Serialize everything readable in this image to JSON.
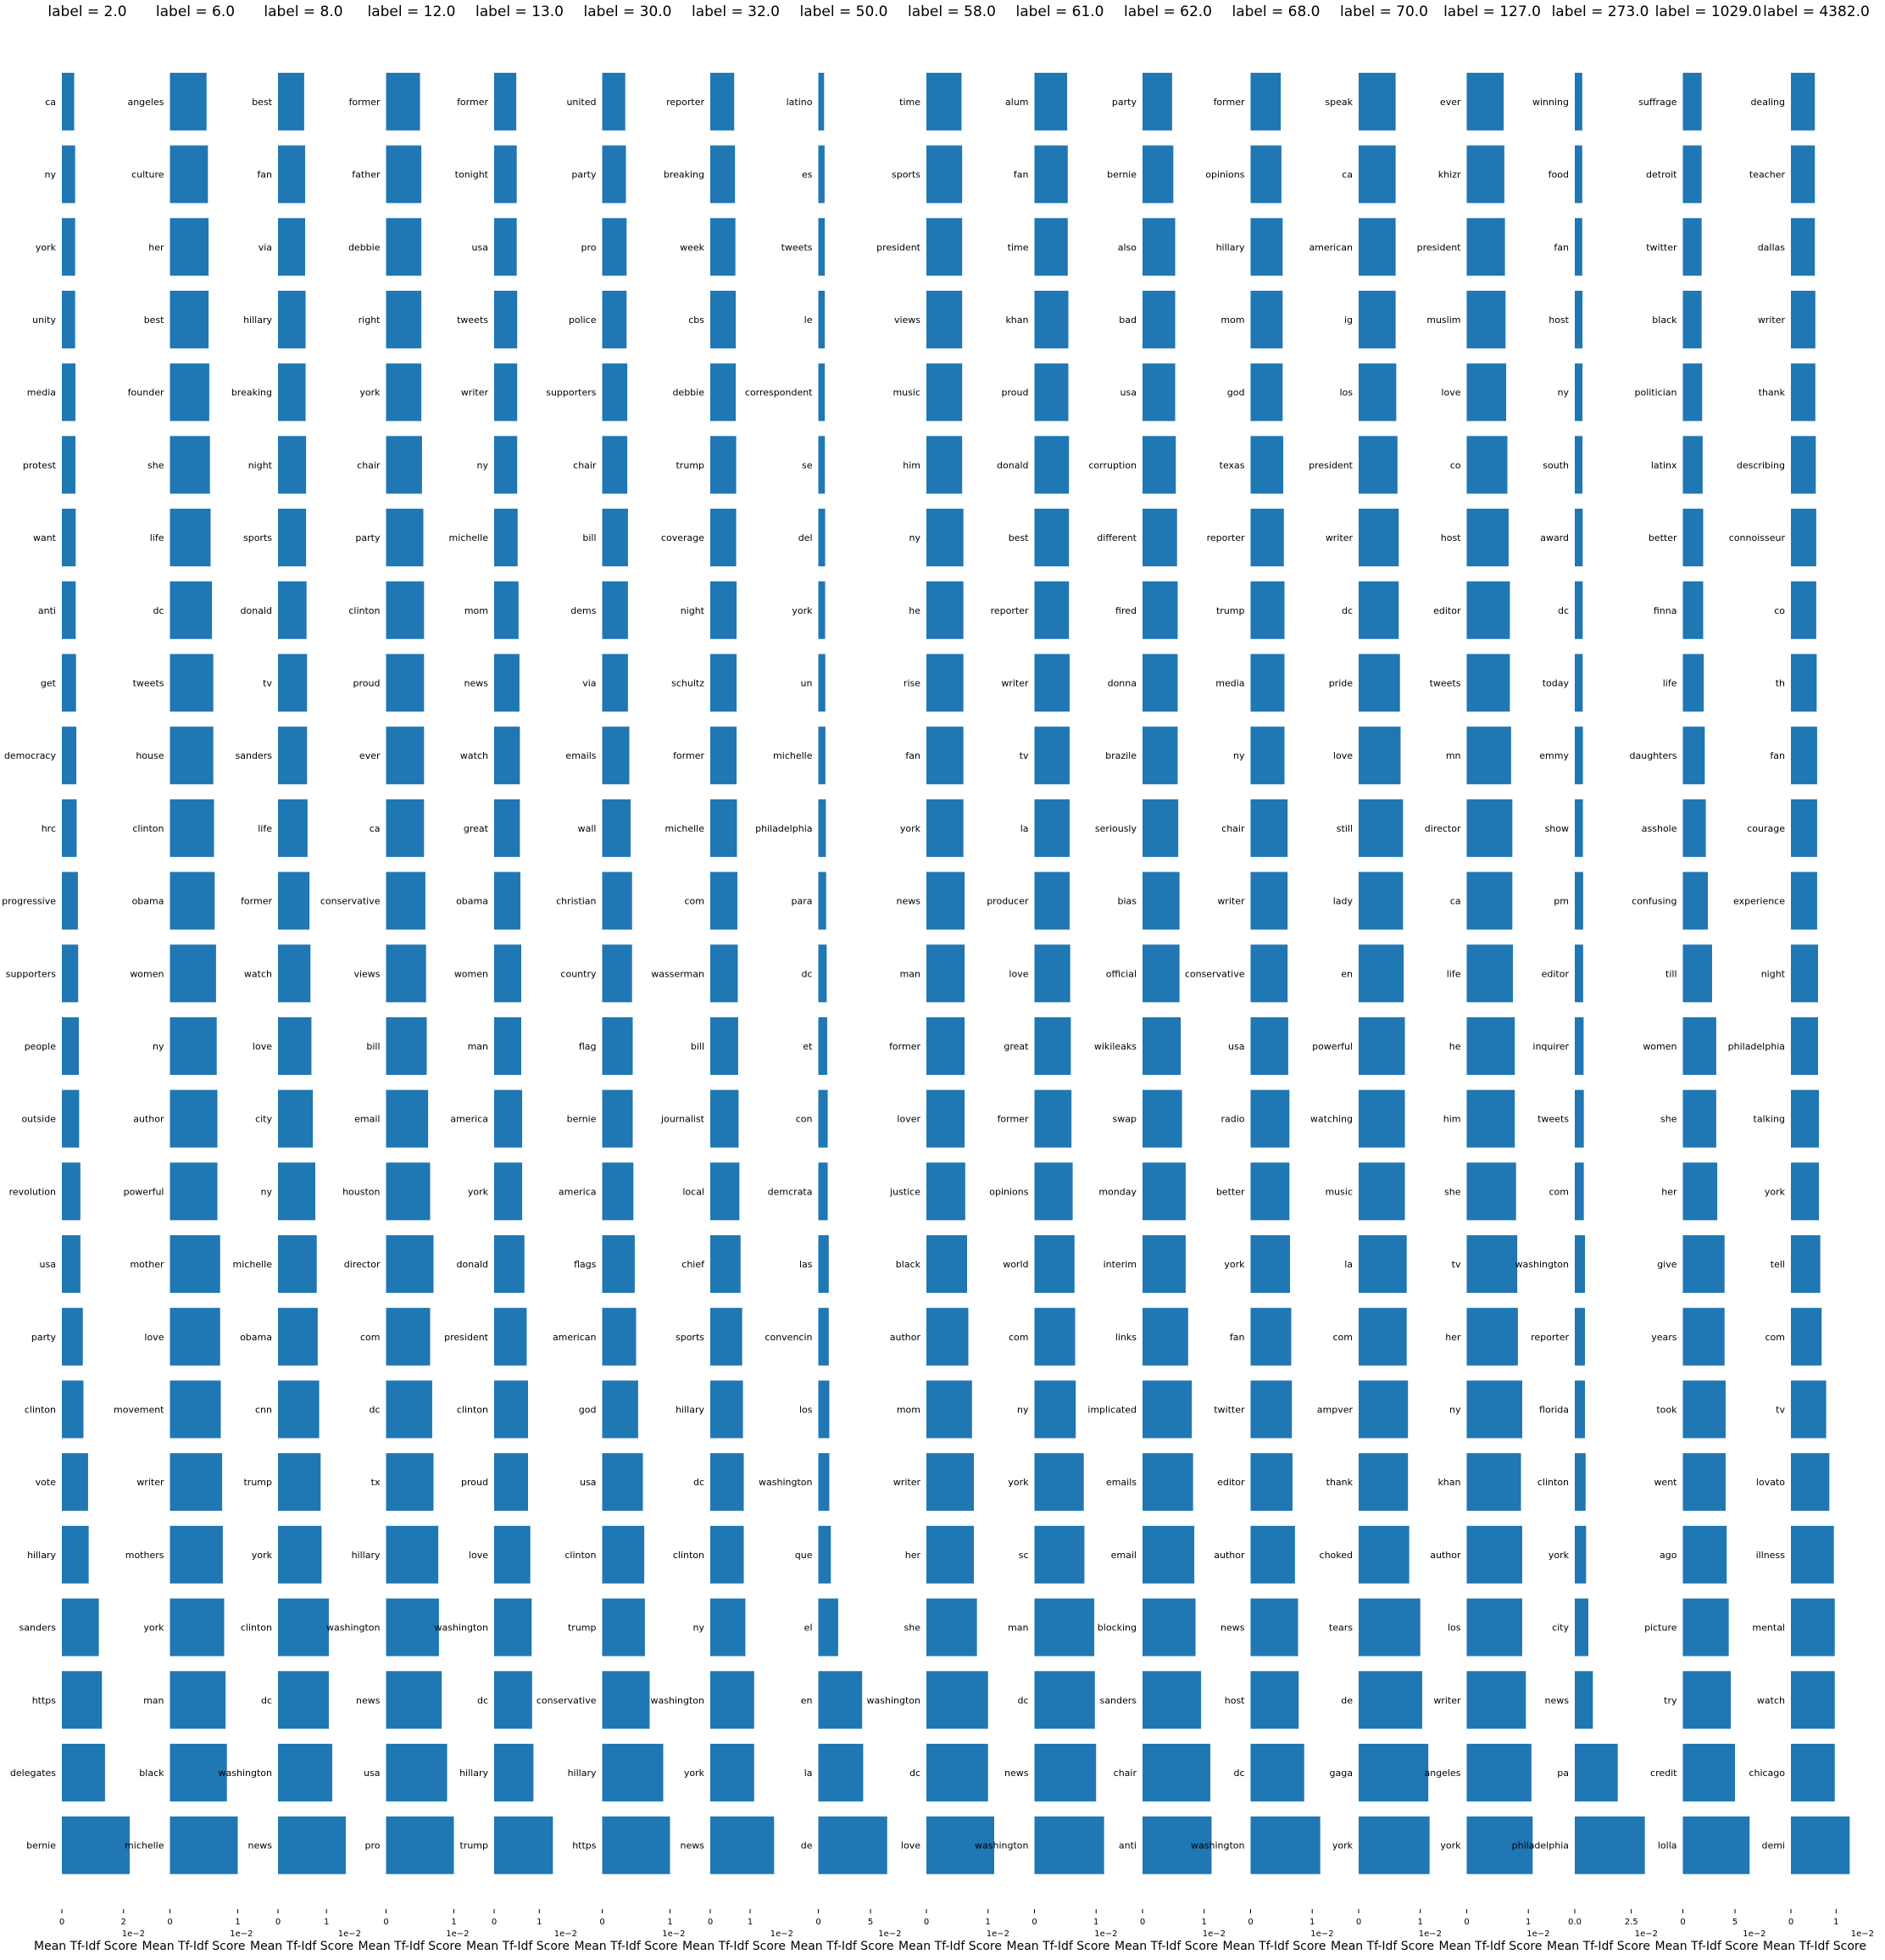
{
  "chart_data": [
    {
      "type": "bar",
      "orientation": "horizontal",
      "title": "label = 2.0",
      "xlabel": "Mean Tf-Idf Score",
      "xlim": [
        0,
        2.2
      ],
      "xticks": [
        0,
        2
      ],
      "scale_note": "1e−2",
      "categories": [
        "ca",
        "ny",
        "york",
        "unity",
        "media",
        "protest",
        "want",
        "anti",
        "get",
        "democracy",
        "hrc",
        "progressive",
        "supporters",
        "people",
        "outside",
        "revolution",
        "usa",
        "party",
        "clinton",
        "vote",
        "hillary",
        "sanders",
        "https",
        "delegates",
        "bernie"
      ],
      "values": [
        0.4,
        0.43,
        0.43,
        0.43,
        0.44,
        0.44,
        0.45,
        0.45,
        0.46,
        0.47,
        0.48,
        0.52,
        0.53,
        0.55,
        0.56,
        0.6,
        0.6,
        0.68,
        0.7,
        0.85,
        0.87,
        1.2,
        1.3,
        1.4,
        2.2
      ]
    },
    {
      "type": "bar",
      "orientation": "horizontal",
      "title": "label = 6.0",
      "xlabel": "Mean Tf-Idf Score",
      "xlim": [
        0,
        1.0
      ],
      "xticks": [
        0,
        1
      ],
      "scale_note": "1e−2",
      "categories": [
        "angeles",
        "culture",
        "her",
        "best",
        "founder",
        "she",
        "life",
        "dc",
        "tweets",
        "house",
        "clinton",
        "obama",
        "women",
        "ny",
        "author",
        "powerful",
        "mother",
        "love",
        "movement",
        "writer",
        "mothers",
        "york",
        "man",
        "black",
        "michelle"
      ],
      "values": [
        0.54,
        0.56,
        0.57,
        0.57,
        0.58,
        0.59,
        0.6,
        0.62,
        0.64,
        0.64,
        0.65,
        0.66,
        0.68,
        0.69,
        0.7,
        0.7,
        0.74,
        0.74,
        0.75,
        0.77,
        0.78,
        0.8,
        0.82,
        0.84,
        1.0
      ]
    },
    {
      "type": "bar",
      "orientation": "horizontal",
      "title": "label = 8.0",
      "xlabel": "Mean Tf-Idf Score",
      "xlim": [
        0,
        1.4
      ],
      "xticks": [
        0,
        1
      ],
      "scale_note": "1e−2",
      "categories": [
        "best",
        "fan",
        "via",
        "hillary",
        "breaking",
        "night",
        "sports",
        "donald",
        "tv",
        "sanders",
        "life",
        "former",
        "watch",
        "love",
        "city",
        "ny",
        "michelle",
        "obama",
        "cnn",
        "trump",
        "york",
        "clinton",
        "dc",
        "washington",
        "news"
      ],
      "values": [
        0.54,
        0.56,
        0.56,
        0.57,
        0.57,
        0.58,
        0.58,
        0.59,
        0.6,
        0.6,
        0.61,
        0.65,
        0.67,
        0.69,
        0.72,
        0.77,
        0.8,
        0.82,
        0.85,
        0.88,
        0.9,
        1.05,
        1.05,
        1.12,
        1.4
      ]
    },
    {
      "type": "bar",
      "orientation": "horizontal",
      "title": "label = 12.0",
      "xlabel": "Mean Tf-Idf Score",
      "xlim": [
        0,
        1.0
      ],
      "xticks": [
        0,
        1
      ],
      "scale_note": "1e−2",
      "categories": [
        "former",
        "father",
        "debbie",
        "right",
        "york",
        "chair",
        "party",
        "clinton",
        "proud",
        "ever",
        "ca",
        "conservative",
        "views",
        "bill",
        "email",
        "houston",
        "director",
        "com",
        "dc",
        "tx",
        "hillary",
        "washington",
        "news",
        "usa",
        "pro"
      ],
      "values": [
        0.5,
        0.52,
        0.52,
        0.52,
        0.52,
        0.53,
        0.55,
        0.56,
        0.56,
        0.56,
        0.56,
        0.58,
        0.59,
        0.6,
        0.62,
        0.65,
        0.7,
        0.65,
        0.68,
        0.7,
        0.77,
        0.78,
        0.82,
        0.9,
        1.0
      ]
    },
    {
      "type": "bar",
      "orientation": "horizontal",
      "title": "label = 13.0",
      "xlabel": "Mean Tf-Idf Score",
      "xlim": [
        0,
        1.5
      ],
      "xticks": [
        0,
        1
      ],
      "scale_note": "1e−2",
      "categories": [
        "former",
        "tonight",
        "usa",
        "tweets",
        "writer",
        "ny",
        "michelle",
        "mom",
        "news",
        "watch",
        "great",
        "obama",
        "women",
        "man",
        "america",
        "york",
        "donald",
        "president",
        "clinton",
        "proud",
        "love",
        "washington",
        "dc",
        "hillary",
        "trump"
      ],
      "values": [
        0.49,
        0.5,
        0.5,
        0.51,
        0.51,
        0.51,
        0.52,
        0.54,
        0.56,
        0.57,
        0.57,
        0.58,
        0.6,
        0.6,
        0.62,
        0.62,
        0.67,
        0.72,
        0.75,
        0.75,
        0.8,
        0.83,
        0.84,
        0.87,
        1.3
      ]
    },
    {
      "type": "bar",
      "orientation": "horizontal",
      "title": "label = 30.0",
      "xlabel": "Mean Tf-Idf Score",
      "xlim": [
        0,
        1.0
      ],
      "xticks": [
        0,
        1
      ],
      "scale_note": "1e−2",
      "categories": [
        "united",
        "party",
        "pro",
        "police",
        "supporters",
        "chair",
        "bill",
        "dems",
        "via",
        "emails",
        "wall",
        "christian",
        "country",
        "flag",
        "bernie",
        "america",
        "flags",
        "american",
        "god",
        "usa",
        "clinton",
        "trump",
        "conservative",
        "hillary",
        "https"
      ],
      "values": [
        0.34,
        0.35,
        0.36,
        0.36,
        0.37,
        0.37,
        0.38,
        0.38,
        0.38,
        0.4,
        0.42,
        0.44,
        0.44,
        0.45,
        0.45,
        0.46,
        0.48,
        0.5,
        0.53,
        0.6,
        0.62,
        0.63,
        0.7,
        0.9,
        1.0
      ]
    },
    {
      "type": "bar",
      "orientation": "horizontal",
      "title": "label = 32.0",
      "xlabel": "Mean Tf-Idf Score",
      "xlim": [
        0,
        1.7
      ],
      "xticks": [
        0,
        1
      ],
      "scale_note": "1e−2",
      "categories": [
        "reporter",
        "breaking",
        "week",
        "cbs",
        "debbie",
        "trump",
        "coverage",
        "night",
        "schultz",
        "former",
        "michelle",
        "com",
        "wasserman",
        "bill",
        "journalist",
        "local",
        "chief",
        "sports",
        "hillary",
        "dc",
        "clinton",
        "ny",
        "washington",
        "york",
        "news"
      ],
      "values": [
        0.6,
        0.62,
        0.63,
        0.64,
        0.64,
        0.65,
        0.65,
        0.66,
        0.66,
        0.66,
        0.67,
        0.68,
        0.69,
        0.7,
        0.71,
        0.73,
        0.76,
        0.8,
        0.82,
        0.84,
        0.84,
        0.88,
        1.1,
        1.1,
        1.6
      ]
    },
    {
      "type": "bar",
      "orientation": "horizontal",
      "title": "label = 50.0",
      "xlabel": "Mean Tf-Idf Score",
      "xlim": [
        0,
        6.5
      ],
      "xticks": [
        0,
        5
      ],
      "scale_note": "1e−2",
      "categories": [
        "latino",
        "es",
        "tweets",
        "le",
        "correspondent",
        "se",
        "del",
        "york",
        "un",
        "michelle",
        "philadelphia",
        "para",
        "dc",
        "et",
        "con",
        "demcrata",
        "las",
        "convencin",
        "los",
        "washington",
        "que",
        "el",
        "en",
        "la",
        "de"
      ],
      "values": [
        0.55,
        0.6,
        0.62,
        0.62,
        0.62,
        0.63,
        0.65,
        0.65,
        0.67,
        0.68,
        0.72,
        0.75,
        0.8,
        0.85,
        0.9,
        0.9,
        1.0,
        1.0,
        1.05,
        1.05,
        1.2,
        1.9,
        4.2,
        4.3,
        6.6
      ]
    },
    {
      "type": "bar",
      "orientation": "horizontal",
      "title": "label = 58.0",
      "xlabel": "Mean Tf-Idf Score",
      "xlim": [
        0,
        1.1
      ],
      "xticks": [
        0,
        1
      ],
      "scale_note": "1e−2",
      "categories": [
        "time",
        "sports",
        "president",
        "views",
        "music",
        "him",
        "ny",
        "he",
        "rise",
        "fan",
        "york",
        "news",
        "man",
        "former",
        "lover",
        "justice",
        "black",
        "author",
        "mom",
        "writer",
        "her",
        "she",
        "washington",
        "dc",
        "love"
      ],
      "values": [
        0.57,
        0.58,
        0.58,
        0.58,
        0.58,
        0.58,
        0.6,
        0.6,
        0.6,
        0.6,
        0.6,
        0.62,
        0.62,
        0.62,
        0.62,
        0.63,
        0.66,
        0.68,
        0.74,
        0.77,
        0.77,
        0.82,
        1.0,
        1.0,
        1.1
      ]
    },
    {
      "type": "bar",
      "orientation": "horizontal",
      "title": "label = 61.0",
      "xlabel": "Mean Tf-Idf Score",
      "xlim": [
        0,
        1.1
      ],
      "xticks": [
        0,
        1
      ],
      "scale_note": "1e−2",
      "categories": [
        "alum",
        "fan",
        "time",
        "khan",
        "proud",
        "donald",
        "best",
        "reporter",
        "writer",
        "tv",
        "la",
        "producer",
        "love",
        "great",
        "former",
        "opinions",
        "world",
        "com",
        "ny",
        "york",
        "sc",
        "man",
        "dc",
        "news",
        "washington"
      ],
      "values": [
        0.53,
        0.54,
        0.54,
        0.55,
        0.55,
        0.56,
        0.56,
        0.56,
        0.57,
        0.57,
        0.57,
        0.57,
        0.58,
        0.59,
        0.6,
        0.62,
        0.65,
        0.66,
        0.67,
        0.8,
        0.81,
        0.97,
        0.98,
        1.0,
        1.13
      ]
    },
    {
      "type": "bar",
      "orientation": "horizontal",
      "title": "label = 62.0",
      "xlabel": "Mean Tf-Idf Score",
      "xlim": [
        0,
        1.1
      ],
      "xticks": [
        0,
        1
      ],
      "scale_note": "1e−2",
      "categories": [
        "party",
        "bernie",
        "also",
        "bad",
        "usa",
        "corruption",
        "different",
        "fired",
        "donna",
        "brazile",
        "seriously",
        "bias",
        "official",
        "wikileaks",
        "swap",
        "monday",
        "interim",
        "links",
        "implicated",
        "emails",
        "email",
        "blocking",
        "sanders",
        "chair",
        "anti"
      ],
      "values": [
        0.48,
        0.5,
        0.53,
        0.53,
        0.53,
        0.54,
        0.56,
        0.57,
        0.57,
        0.57,
        0.58,
        0.6,
        0.6,
        0.62,
        0.64,
        0.7,
        0.7,
        0.74,
        0.8,
        0.82,
        0.84,
        0.86,
        0.95,
        1.1,
        1.12
      ]
    },
    {
      "type": "bar",
      "orientation": "horizontal",
      "title": "label = 68.0",
      "xlabel": "Mean Tf-Idf Score",
      "xlim": [
        0,
        1.1
      ],
      "xticks": [
        0,
        1
      ],
      "scale_note": "1e−2",
      "categories": [
        "former",
        "opinions",
        "hillary",
        "mom",
        "god",
        "texas",
        "reporter",
        "trump",
        "media",
        "ny",
        "chair",
        "writer",
        "conservative",
        "usa",
        "radio",
        "better",
        "york",
        "fan",
        "twitter",
        "editor",
        "author",
        "news",
        "host",
        "dc",
        "washington"
      ],
      "values": [
        0.49,
        0.5,
        0.52,
        0.52,
        0.52,
        0.53,
        0.54,
        0.55,
        0.55,
        0.55,
        0.6,
        0.6,
        0.6,
        0.61,
        0.63,
        0.63,
        0.64,
        0.66,
        0.67,
        0.68,
        0.72,
        0.77,
        0.78,
        0.87,
        1.13
      ]
    },
    {
      "type": "bar",
      "orientation": "horizontal",
      "title": "label = 70.0",
      "xlabel": "Mean Tf-Idf Score",
      "xlim": [
        0,
        1.1
      ],
      "xticks": [
        0,
        1
      ],
      "scale_note": "1e−2",
      "categories": [
        "speak",
        "ca",
        "american",
        "ig",
        "los",
        "president",
        "writer",
        "dc",
        "pride",
        "love",
        "still",
        "lady",
        "en",
        "powerful",
        "watching",
        "music",
        "la",
        "com",
        "ampver",
        "thank",
        "choked",
        "tears",
        "de",
        "gaga",
        "york"
      ],
      "values": [
        0.6,
        0.6,
        0.6,
        0.6,
        0.61,
        0.63,
        0.65,
        0.65,
        0.67,
        0.68,
        0.72,
        0.72,
        0.73,
        0.75,
        0.75,
        0.75,
        0.78,
        0.78,
        0.8,
        0.8,
        0.82,
        1.0,
        1.03,
        1.13,
        1.15
      ]
    },
    {
      "type": "bar",
      "orientation": "horizontal",
      "title": "label = 127.0",
      "xlabel": "Mean Tf-Idf Score",
      "xlim": [
        0,
        1.1
      ],
      "xticks": [
        0,
        1
      ],
      "scale_note": "1e−2",
      "categories": [
        "ever",
        "khizr",
        "president",
        "muslim",
        "love",
        "co",
        "host",
        "editor",
        "tweets",
        "mn",
        "director",
        "ca",
        "life",
        "he",
        "him",
        "she",
        "tv",
        "her",
        "ny",
        "khan",
        "author",
        "los",
        "writer",
        "angeles",
        "york"
      ],
      "values": [
        0.6,
        0.61,
        0.62,
        0.63,
        0.64,
        0.66,
        0.68,
        0.7,
        0.7,
        0.72,
        0.74,
        0.74,
        0.75,
        0.78,
        0.78,
        0.8,
        0.82,
        0.83,
        0.9,
        0.88,
        0.9,
        0.9,
        0.96,
        1.05,
        1.07
      ]
    },
    {
      "type": "bar",
      "orientation": "horizontal",
      "title": "label = 273.0",
      "xlabel": "Mean Tf-Idf Score",
      "xlim": [
        0,
        3.0
      ],
      "xticks": [
        0,
        2.5
      ],
      "xtick_labels": [
        "0.0",
        "2.5"
      ],
      "scale_note": "1e−2",
      "categories": [
        "winning",
        "food",
        "fan",
        "host",
        "ny",
        "south",
        "award",
        "dc",
        "today",
        "emmy",
        "show",
        "pm",
        "editor",
        "inquirer",
        "tweets",
        "com",
        "washington",
        "reporter",
        "florida",
        "clinton",
        "york",
        "city",
        "news",
        "pa",
        "philadelphia"
      ],
      "values": [
        0.33,
        0.33,
        0.33,
        0.34,
        0.34,
        0.34,
        0.35,
        0.35,
        0.35,
        0.36,
        0.36,
        0.37,
        0.37,
        0.39,
        0.4,
        0.4,
        0.45,
        0.45,
        0.45,
        0.48,
        0.5,
        0.6,
        0.8,
        1.9,
        3.1
      ]
    },
    {
      "type": "bar",
      "orientation": "horizontal",
      "title": "label = 1029.0",
      "xlabel": "Mean Tf-Idf Score",
      "xlim": [
        0,
        6.5
      ],
      "xticks": [
        0,
        5
      ],
      "scale_note": "1e−2",
      "categories": [
        "suffrage",
        "detroit",
        "twitter",
        "black",
        "politician",
        "latinx",
        "better",
        "finna",
        "life",
        "daughters",
        "asshole",
        "confusing",
        "till",
        "women",
        "she",
        "her",
        "give",
        "years",
        "took",
        "went",
        "ago",
        "picture",
        "try",
        "credit",
        "lolla"
      ],
      "values": [
        1.8,
        1.8,
        1.8,
        1.8,
        1.85,
        1.9,
        1.95,
        1.95,
        2.0,
        2.1,
        2.2,
        2.4,
        2.8,
        3.2,
        3.2,
        3.3,
        4.0,
        4.0,
        4.1,
        4.1,
        4.2,
        4.4,
        4.6,
        5.0,
        6.4
      ]
    },
    {
      "type": "bar",
      "orientation": "horizontal",
      "title": "label = 4382.0",
      "xlabel": "Mean Tf-Idf Score",
      "xlim": [
        0,
        1.5
      ],
      "xticks": [
        0,
        1
      ],
      "scale_note": "1e−2",
      "categories": [
        "dealing",
        "teacher",
        "dallas",
        "writer",
        "thank",
        "describing",
        "connoisseur",
        "co",
        "th",
        "fan",
        "courage",
        "experience",
        "night",
        "philadelphia",
        "talking",
        "york",
        "tell",
        "com",
        "tv",
        "lovato",
        "illness",
        "mental",
        "watch",
        "chicago",
        "demi"
      ],
      "values": [
        0.53,
        0.53,
        0.53,
        0.54,
        0.54,
        0.55,
        0.56,
        0.56,
        0.57,
        0.58,
        0.58,
        0.58,
        0.6,
        0.6,
        0.62,
        0.62,
        0.65,
        0.68,
        0.78,
        0.85,
        0.95,
        0.97,
        0.97,
        0.97,
        1.3
      ]
    }
  ],
  "colors": {
    "bar": "#1f77b4",
    "text": "#000000",
    "axis": "#000000"
  }
}
